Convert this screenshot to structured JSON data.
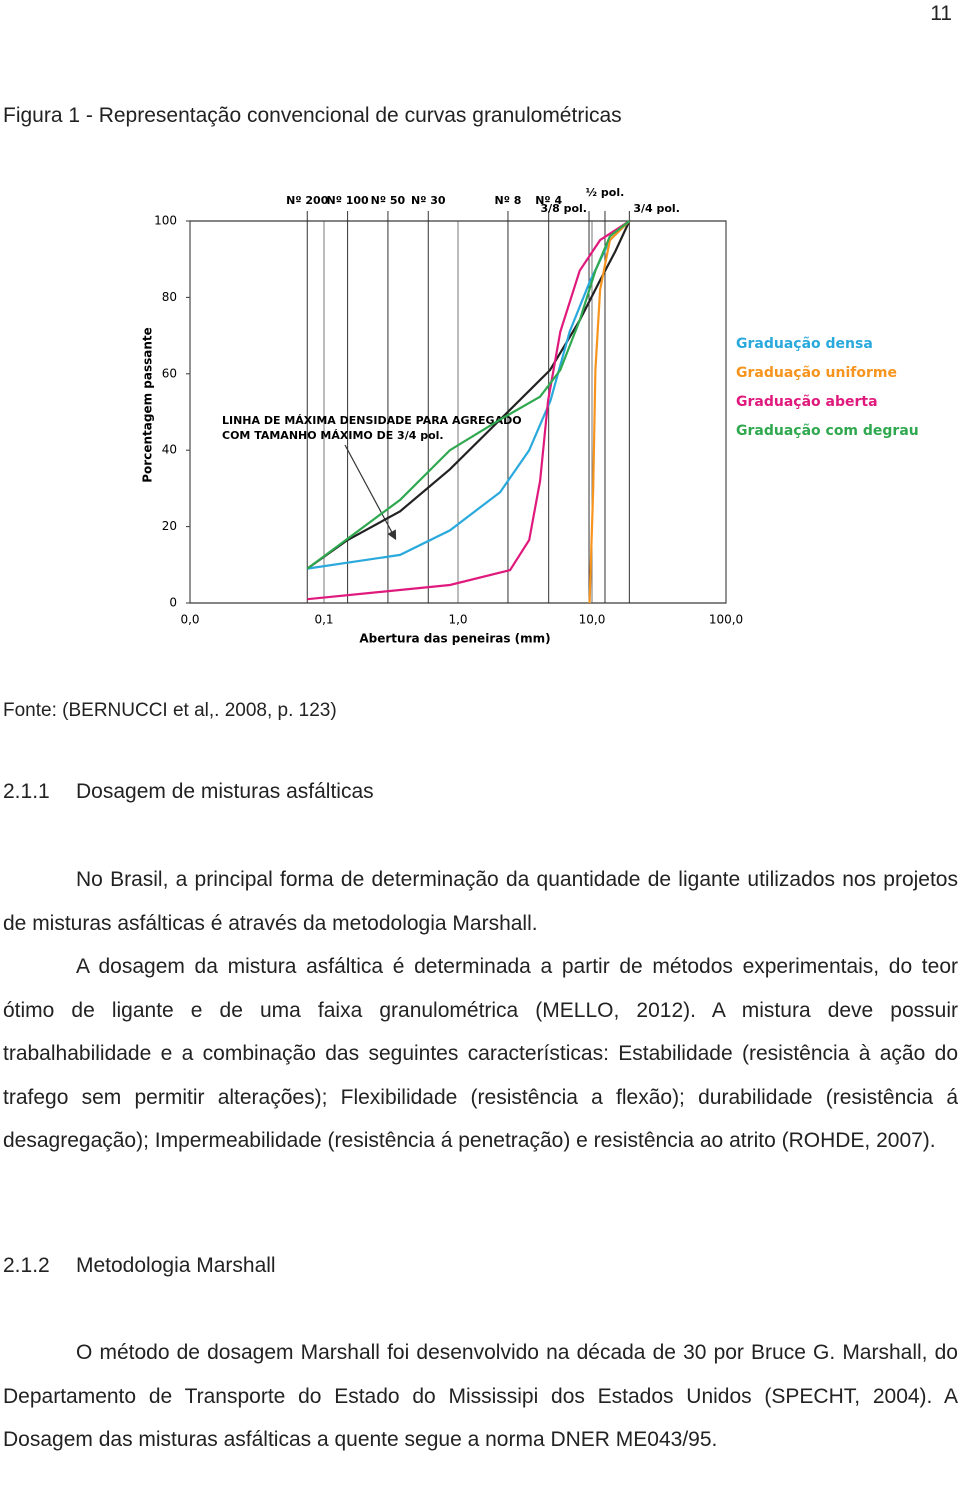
{
  "page_number": "11",
  "figure": {
    "caption": "Figura 1 - Representação convencional de curvas granulométricas",
    "source": "Fonte: (BERNUCCI et al,. 2008, p. 123)"
  },
  "chart_data": {
    "type": "line",
    "log_x": true,
    "grid": true,
    "ylabel": "Porcentagem passante",
    "xlabel": "Abertura das peneiras (mm)",
    "xlim": [
      0.01,
      100
    ],
    "ylim": [
      0,
      100
    ],
    "xticks": [
      {
        "value": 0.01,
        "label": "0,0"
      },
      {
        "value": 0.1,
        "label": "0,1"
      },
      {
        "value": 1,
        "label": "1,0"
      },
      {
        "value": 10,
        "label": "10,0"
      },
      {
        "value": 100,
        "label": "100,0"
      }
    ],
    "yticks": [
      0,
      20,
      40,
      60,
      80,
      100
    ],
    "sieves": [
      {
        "value": 0.075,
        "label": "Nº 200"
      },
      {
        "value": 0.15,
        "label": "Nº 100"
      },
      {
        "value": 0.3,
        "label": "Nº 50"
      },
      {
        "value": 0.6,
        "label": "Nº 30"
      },
      {
        "value": 2.36,
        "label": "Nº 8"
      },
      {
        "value": 4.75,
        "label": "Nº 4"
      },
      {
        "value": 9.5,
        "label": "3/8 pol."
      },
      {
        "value": 12.5,
        "label": "½ pol."
      },
      {
        "value": 19,
        "label": "3/4 pol."
      }
    ],
    "annotation": [
      "LINHA DE MÁXIMA DENSIDADE PARA AGREGADO",
      "COM TAMANHO MÁXIMO DE 3/4 pol."
    ],
    "series": [
      {
        "color": "#222222",
        "x": [
          0.075,
          0.15,
          0.37,
          0.87,
          2.06,
          4.87,
          8.1,
          11.5,
          14.9,
          19
        ],
        "values": [
          9,
          16.5,
          24,
          35,
          48,
          61,
          74,
          84.5,
          92,
          100
        ]
      },
      {
        "name": "Graduação densa",
        "color": "#29a9dc",
        "x": [
          0.075,
          0.37,
          0.87,
          2.06,
          3.4,
          4.9,
          6.8,
          9.6,
          13.6,
          19
        ],
        "values": [
          9,
          12.6,
          19,
          29,
          40,
          53,
          71,
          84,
          95,
          100
        ]
      },
      {
        "name": "Graduação uniforme",
        "color": "#f7941d",
        "x": [
          9.6,
          10.2,
          10.6,
          11.5,
          13.6,
          19
        ],
        "values": [
          0,
          30,
          61,
          82,
          95,
          100
        ]
      },
      {
        "name": "Graduação aberta",
        "color": "#e0197d",
        "x": [
          0.075,
          0.87,
          2.45,
          3.4,
          4.1,
          4.7,
          5.8,
          8.1,
          11.5,
          19
        ],
        "values": [
          1,
          4.7,
          8.6,
          16.5,
          32,
          53,
          71,
          87,
          95,
          100
        ]
      },
      {
        "name": "Graduação com degrau",
        "color": "#2fa84f",
        "x": [
          0.075,
          0.37,
          0.87,
          2.06,
          4.1,
          5.8,
          8.1,
          10.6,
          13.6,
          19
        ],
        "values": [
          9,
          27,
          40,
          48,
          54,
          61,
          74,
          87,
          96,
          100
        ]
      }
    ]
  },
  "sections": [
    {
      "number": "2.1.1",
      "title": "Dosagem de misturas asfálticas",
      "paragraphs": [
        "No Brasil, a principal forma de determinação da quantidade de ligante utilizados nos projetos de misturas asfálticas é através da metodologia Marshall.",
        "A dosagem da mistura asfáltica é determinada a partir de métodos experimentais, do teor ótimo de ligante e de uma faixa granulométrica (MELLO, 2012). A mistura deve possuir trabalhabilidade e a combinação das seguintes características: Estabilidade (resistência à ação do trafego sem permitir alterações); Flexibilidade (resistência a flexão); durabilidade (resistência á desagregação); Impermeabilidade (resistência á penetração) e resistência ao atrito (ROHDE, 2007)."
      ]
    },
    {
      "number": "2.1.2",
      "title": "Metodologia Marshall",
      "paragraphs": [
        "O método de dosagem Marshall foi desenvolvido na década de 30 por Bruce G. Marshall, do Departamento de Transporte do Estado do Mississipi dos Estados Unidos  (SPECHT, 2004). A Dosagem das misturas asfálticas a quente segue a norma DNER ME043/95."
      ]
    }
  ]
}
